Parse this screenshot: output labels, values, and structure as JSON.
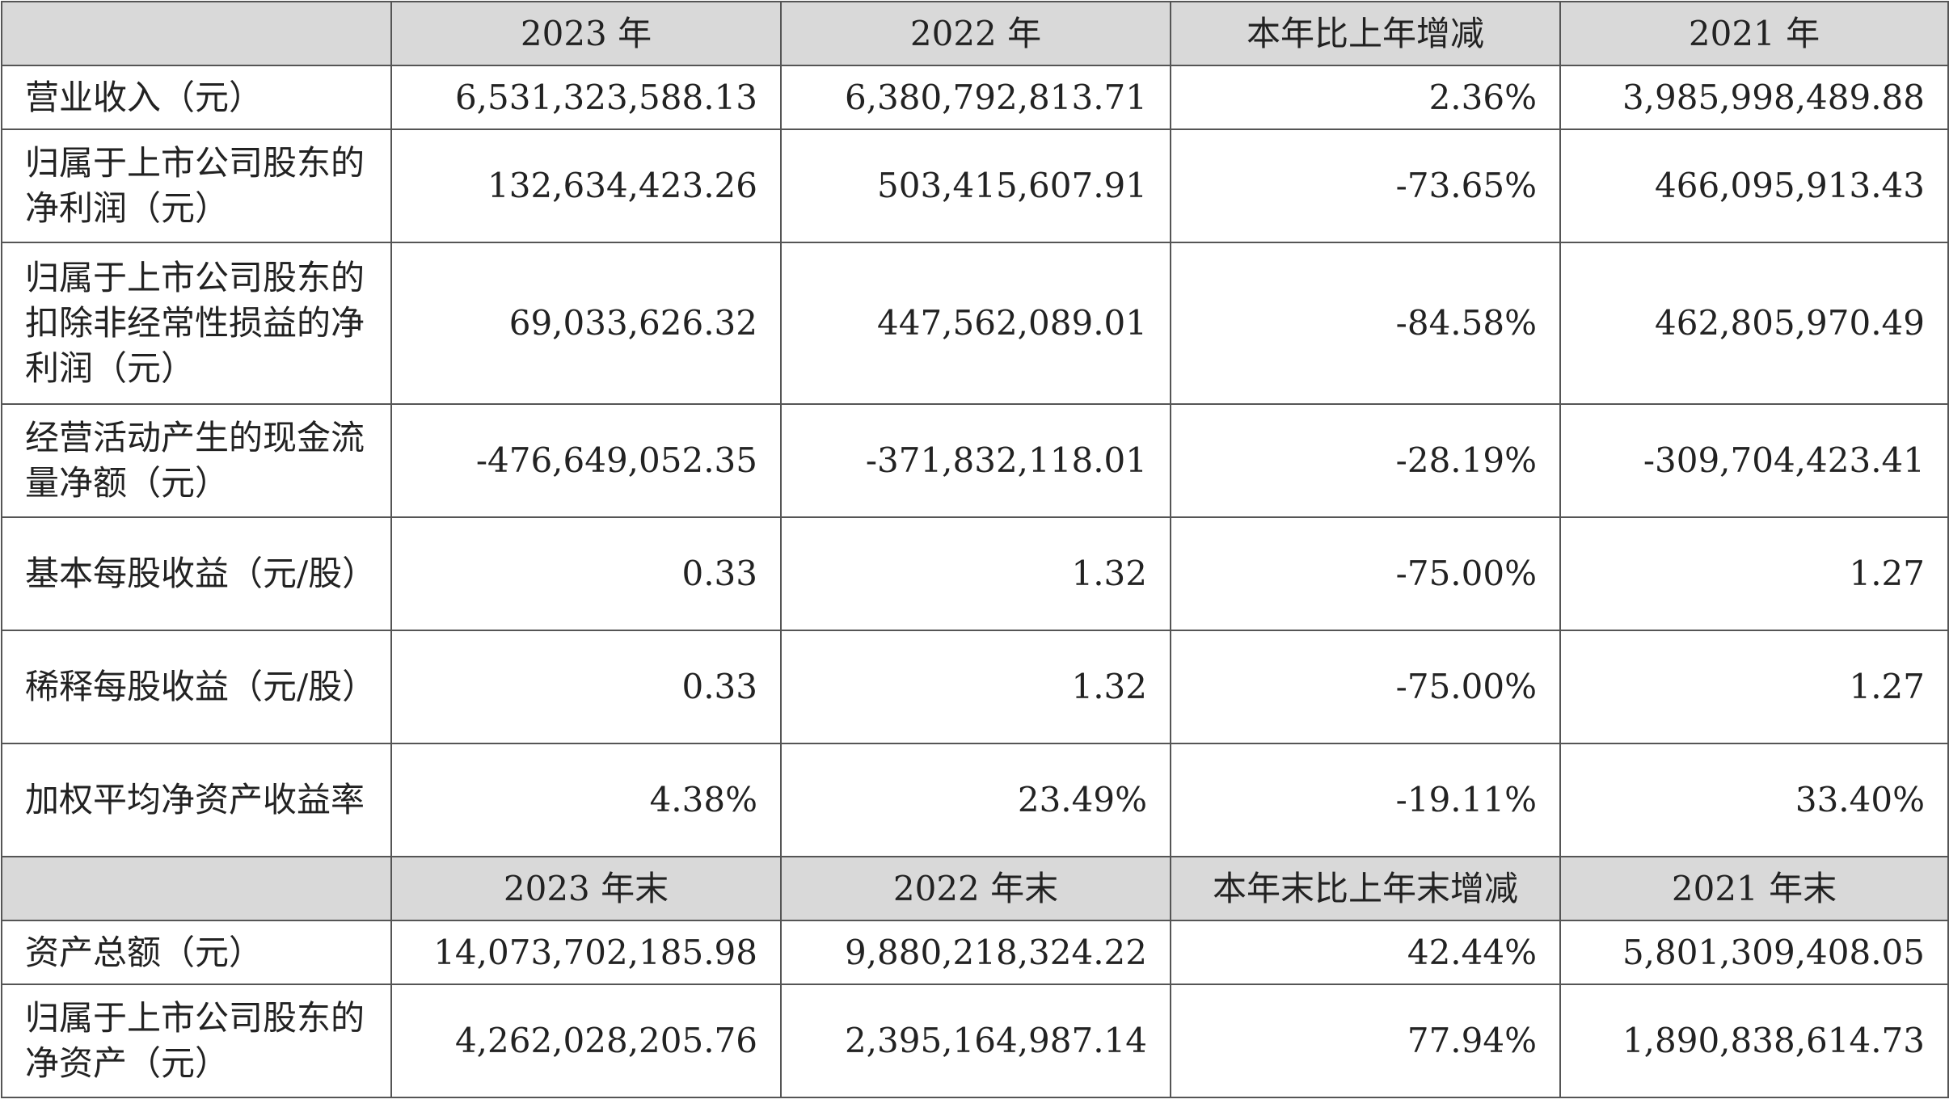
{
  "header1": [
    "",
    "2023 年",
    "2022 年",
    "本年比上年增减",
    "2021 年"
  ],
  "rows1": [
    {
      "label": "营业收入（元）",
      "values": [
        "6,531,323,588.13",
        "6,380,792,813.71",
        "2.36%",
        "3,985,998,489.88"
      ]
    },
    {
      "label": "归属于上市公司股东的净利润（元）",
      "values": [
        "132,634,423.26",
        "503,415,607.91",
        "-73.65%",
        "466,095,913.43"
      ]
    },
    {
      "label": "归属于上市公司股东的扣除非经常性损益的净利润（元）",
      "values": [
        "69,033,626.32",
        "447,562,089.01",
        "-84.58%",
        "462,805,970.49"
      ]
    },
    {
      "label": "经营活动产生的现金流量净额（元）",
      "values": [
        "-476,649,052.35",
        "-371,832,118.01",
        "-28.19%",
        "-309,704,423.41"
      ]
    },
    {
      "label": "基本每股收益（元/股）",
      "values": [
        "0.33",
        "1.32",
        "-75.00%",
        "1.27"
      ]
    },
    {
      "label": "稀释每股收益（元/股）",
      "values": [
        "0.33",
        "1.32",
        "-75.00%",
        "1.27"
      ]
    },
    {
      "label": "加权平均净资产收益率",
      "values": [
        "4.38%",
        "23.49%",
        "-19.11%",
        "33.40%"
      ]
    }
  ],
  "header2": [
    "",
    "2023 年末",
    "2022 年末",
    "本年末比上年末增减",
    "2021 年末"
  ],
  "rows2": [
    {
      "label": "资产总额（元）",
      "values": [
        "14,073,702,185.98",
        "9,880,218,324.22",
        "42.44%",
        "5,801,309,408.05"
      ]
    },
    {
      "label": "归属于上市公司股东的净资产（元）",
      "values": [
        "4,262,028,205.76",
        "2,395,164,987.14",
        "77.94%",
        "1,890,838,614.73"
      ]
    }
  ]
}
